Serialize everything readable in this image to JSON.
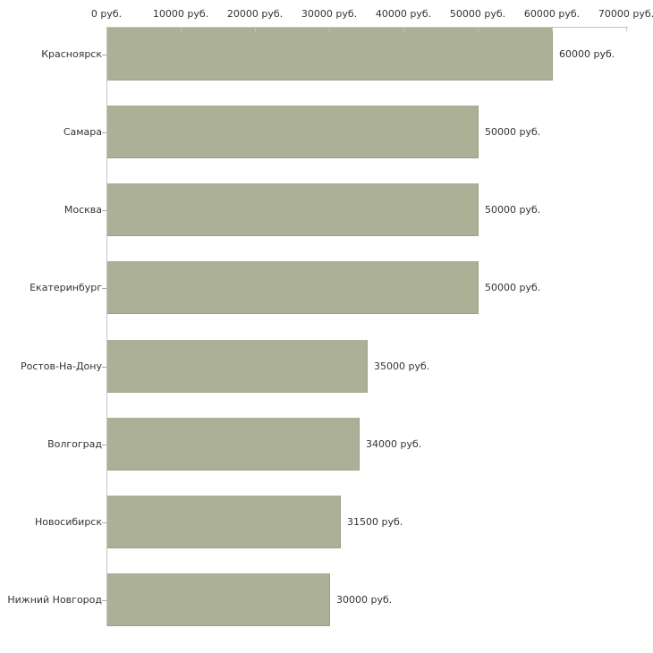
{
  "chart_data": {
    "type": "bar",
    "orientation": "horizontal",
    "title": "",
    "xlabel": "",
    "ylabel": "",
    "legend": "none",
    "grid": false,
    "unit_suffix": " руб.",
    "categories": [
      "Красноярск",
      "Самара",
      "Москва",
      "Екатеринбург",
      "Ростов-На-Дону",
      "Волгоград",
      "Новосибирск",
      "Нижний Новгород"
    ],
    "values": [
      60000,
      50000,
      50000,
      50000,
      35000,
      34000,
      31500,
      30000
    ],
    "value_labels": [
      "60000 руб.",
      "50000 руб.",
      "50000 руб.",
      "50000 руб.",
      "35000 руб.",
      "34000 руб.",
      "31500 руб.",
      "30000 руб."
    ],
    "x_tick_values": [
      0,
      10000,
      20000,
      30000,
      40000,
      50000,
      60000,
      70000
    ],
    "x_tick_labels": [
      "0 руб.",
      "10000 руб.",
      "20000 руб.",
      "30000 руб.",
      "40000 руб.",
      "50000 руб.",
      "60000 руб.",
      "70000 руб."
    ],
    "xlim": [
      0,
      70000
    ],
    "colors": {
      "bar_fill": "#abb096",
      "bar_edge": "#9aa086",
      "x_axis": "#c8c8a8",
      "y_axis": "#c6c6c6",
      "y_tick": "#aaaaaa",
      "text": "#333333",
      "background": "#ffffff"
    }
  }
}
